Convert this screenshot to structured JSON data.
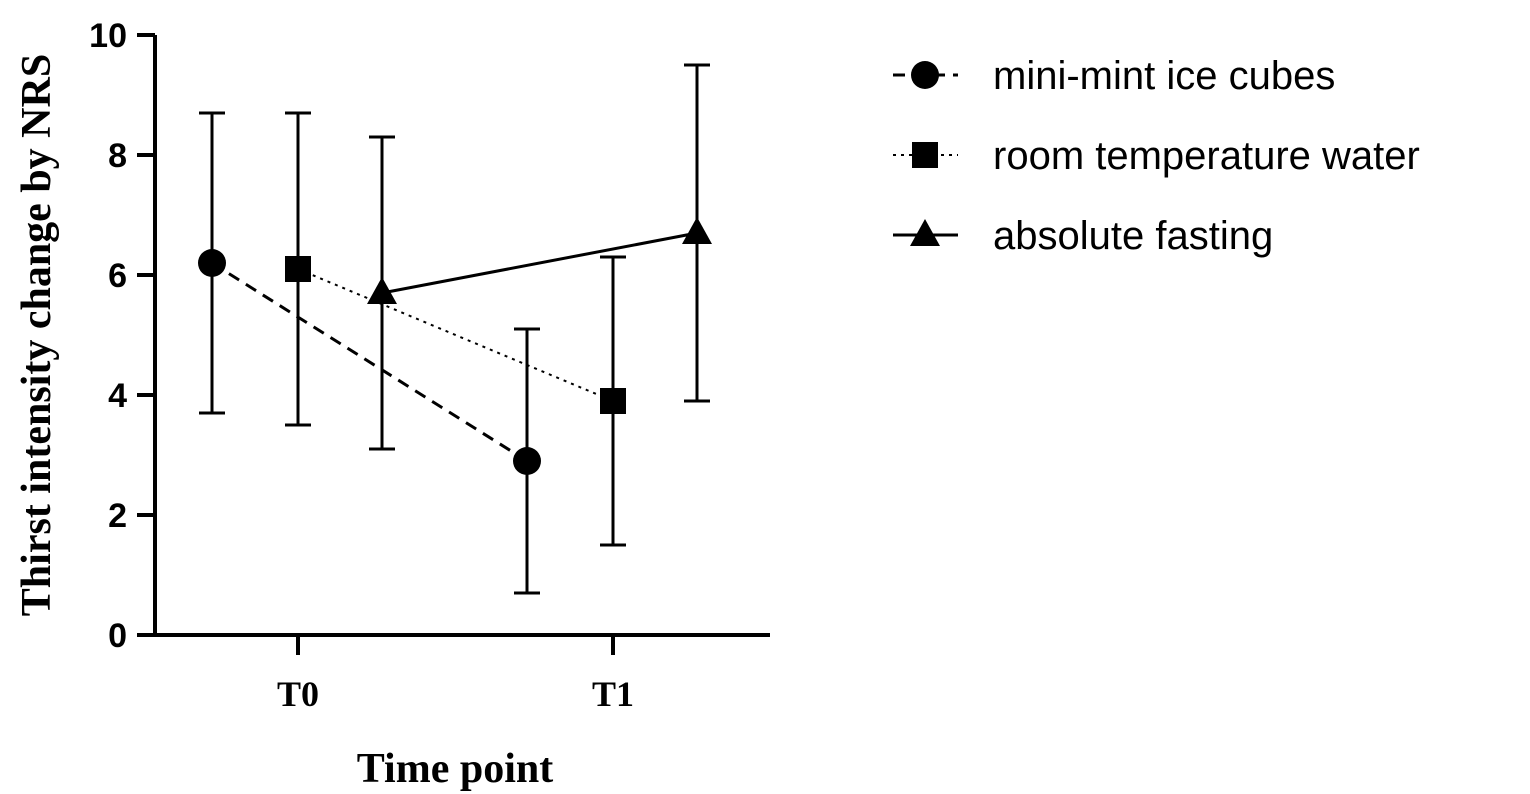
{
  "chart_data": {
    "type": "line",
    "title": "",
    "xlabel": "Time point",
    "ylabel": "Thirst intensity change by NRS",
    "categories": [
      "T0",
      "T1"
    ],
    "ylim": [
      0,
      10
    ],
    "yticks": [
      "0",
      "2",
      "4",
      "6",
      "8",
      "10"
    ],
    "grid": false,
    "legend_position": "top-right",
    "series": [
      {
        "name": "mini-mint ice cubes",
        "marker": "circle",
        "line_style": "dashed",
        "values": [
          6.2,
          2.9
        ],
        "error_low": [
          3.7,
          0.7
        ],
        "error_high": [
          8.7,
          5.1
        ]
      },
      {
        "name": "room temperature water",
        "marker": "square",
        "line_style": "dotted",
        "values": [
          6.1,
          3.9
        ],
        "error_low": [
          3.5,
          1.5
        ],
        "error_high": [
          8.7,
          6.3
        ]
      },
      {
        "name": "absolute fasting",
        "marker": "triangle",
        "line_style": "solid",
        "values": [
          5.7,
          6.7
        ],
        "error_low": [
          3.1,
          3.9
        ],
        "error_high": [
          8.3,
          9.5
        ]
      }
    ]
  }
}
